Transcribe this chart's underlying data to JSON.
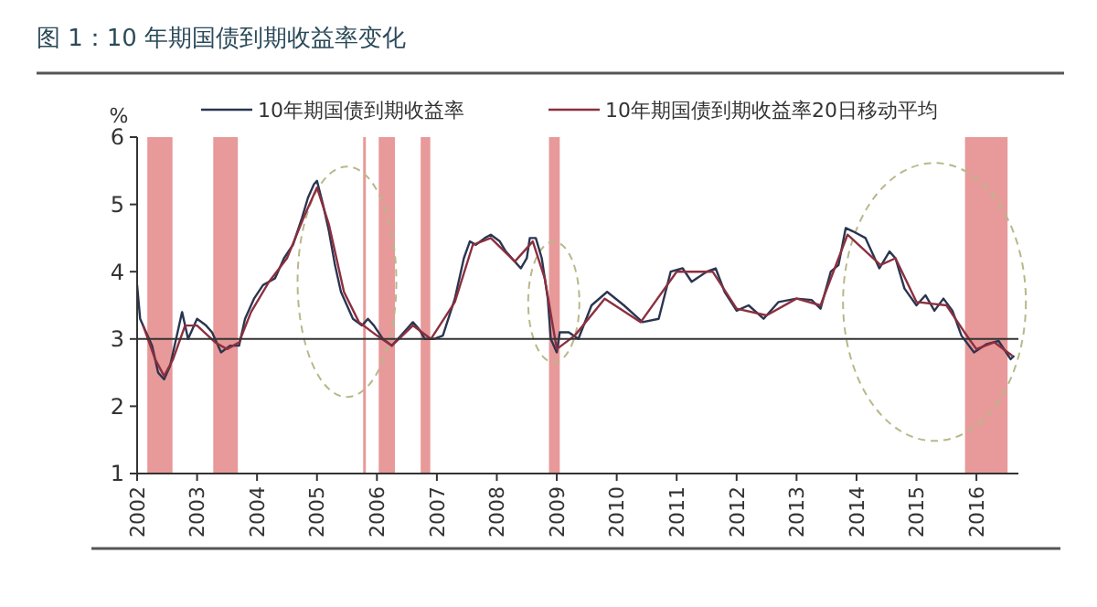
{
  "chart_data": {
    "type": "line",
    "title": "图 1：10 年期国债到期收益率变化",
    "ylabel": "%",
    "legend": "top",
    "grid": false,
    "line_style": "solid",
    "marker": "none",
    "xlim": [
      2002,
      2016.7
    ],
    "xticks": [
      2002,
      2003,
      2004,
      2005,
      2006,
      2007,
      2008,
      2009,
      2010,
      2011,
      2012,
      2013,
      2014,
      2015,
      2016
    ],
    "ylim": [
      1,
      6
    ],
    "yticks": [
      1,
      2,
      3,
      4,
      5,
      6
    ],
    "ref_lines": [
      {
        "axis": "y",
        "value": 3,
        "color": "#333333"
      }
    ],
    "bands": [
      {
        "axis": "x",
        "from": 2002.17,
        "to": 2002.59,
        "color": "#e58e8e"
      },
      {
        "axis": "x",
        "from": 2003.27,
        "to": 2003.68,
        "color": "#e58e8e"
      },
      {
        "axis": "x",
        "from": 2005.77,
        "to": 2005.81,
        "color": "#e58e8e"
      },
      {
        "axis": "x",
        "from": 2006.03,
        "to": 2006.3,
        "color": "#e58e8e"
      },
      {
        "axis": "x",
        "from": 2006.73,
        "to": 2006.89,
        "color": "#e58e8e"
      },
      {
        "axis": "x",
        "from": 2008.87,
        "to": 2009.05,
        "color": "#e58e8e"
      },
      {
        "axis": "x",
        "from": 2015.81,
        "to": 2016.52,
        "color": "#e58e8e"
      }
    ],
    "series": [
      {
        "name": "10年期国债到期收益率",
        "color": "#2a3550",
        "x": [
          2002,
          2002.05,
          2002.15,
          2002.25,
          2002.35,
          2002.45,
          2002.55,
          2002.65,
          2002.75,
          2002.85,
          2003,
          2003.15,
          2003.25,
          2003.4,
          2003.55,
          2003.7,
          2003.8,
          2003.95,
          2004.1,
          2004.3,
          2004.45,
          2004.6,
          2004.75,
          2004.85,
          2004.95,
          2005,
          2005.1,
          2005.2,
          2005.3,
          2005.4,
          2005.5,
          2005.6,
          2005.75,
          2005.85,
          2005.95,
          2006.1,
          2006.25,
          2006.35,
          2006.5,
          2006.6,
          2006.7,
          2006.8,
          2006.95,
          2007.1,
          2007.3,
          2007.45,
          2007.55,
          2007.65,
          2007.8,
          2007.9,
          2008.05,
          2008.15,
          2008.3,
          2008.4,
          2008.5,
          2008.55,
          2008.65,
          2008.75,
          2008.85,
          2008.9,
          2009,
          2009.05,
          2009.2,
          2009.36,
          2009.58,
          2009.84,
          2010.12,
          2010.43,
          2010.7,
          2010.9,
          2011.1,
          2011.25,
          2011.5,
          2011.65,
          2011.8,
          2012,
          2012.2,
          2012.45,
          2012.7,
          2013,
          2013.25,
          2013.4,
          2013.57,
          2013.7,
          2013.82,
          2013.94,
          2014.15,
          2014.38,
          2014.55,
          2014.65,
          2014.8,
          2015,
          2015.15,
          2015.3,
          2015.45,
          2015.6,
          2015.75,
          2015.96,
          2016.16,
          2016.37,
          2016.57,
          2016.63
        ],
        "values": [
          3.8,
          3.3,
          3.1,
          2.9,
          2.5,
          2.4,
          2.6,
          3.0,
          3.4,
          3.0,
          3.3,
          3.2,
          3.1,
          2.8,
          2.9,
          2.9,
          3.3,
          3.6,
          3.8,
          3.9,
          4.2,
          4.4,
          4.8,
          5.1,
          5.3,
          5.35,
          5.0,
          4.6,
          4.1,
          3.7,
          3.5,
          3.3,
          3.2,
          3.3,
          3.2,
          3.0,
          2.9,
          3.0,
          3.15,
          3.25,
          3.15,
          3.0,
          3.0,
          3.05,
          3.6,
          4.2,
          4.45,
          4.4,
          4.5,
          4.55,
          4.45,
          4.3,
          4.15,
          4.05,
          4.2,
          4.5,
          4.5,
          4.2,
          3.6,
          3.0,
          2.8,
          3.1,
          3.1,
          3.0,
          3.5,
          3.7,
          3.5,
          3.25,
          3.3,
          4.0,
          4.05,
          3.85,
          4.0,
          4.05,
          3.7,
          3.42,
          3.5,
          3.3,
          3.55,
          3.6,
          3.58,
          3.45,
          4.0,
          4.1,
          4.65,
          4.6,
          4.5,
          4.05,
          4.3,
          4.2,
          3.75,
          3.5,
          3.65,
          3.42,
          3.6,
          3.42,
          3.05,
          2.8,
          2.92,
          2.97,
          2.7,
          2.75
        ]
      },
      {
        "name": "10年期国债到期收益率20日移动平均",
        "color": "#8c2f3f",
        "x": [
          2002.1,
          2002.3,
          2002.45,
          2002.6,
          2002.8,
          2003,
          2003.3,
          2003.5,
          2003.7,
          2003.9,
          2004.2,
          2004.5,
          2004.8,
          2005,
          2005.2,
          2005.45,
          2005.7,
          2006,
          2006.25,
          2006.6,
          2006.9,
          2007.3,
          2007.6,
          2007.9,
          2008.3,
          2008.6,
          2008.8,
          2009,
          2009.3,
          2009.8,
          2010.4,
          2011,
          2011.6,
          2012,
          2012.5,
          2013,
          2013.4,
          2013.85,
          2014.4,
          2014.65,
          2015,
          2015.5,
          2015.8,
          2016,
          2016.3,
          2016.6
        ],
        "values": [
          3.2,
          2.7,
          2.45,
          2.7,
          3.2,
          3.2,
          2.95,
          2.85,
          2.95,
          3.4,
          3.85,
          4.2,
          4.85,
          5.25,
          4.7,
          3.7,
          3.25,
          3.05,
          2.9,
          3.2,
          3.0,
          3.55,
          4.4,
          4.5,
          4.15,
          4.45,
          3.9,
          2.85,
          3.05,
          3.6,
          3.25,
          4.0,
          4.0,
          3.45,
          3.35,
          3.6,
          3.5,
          4.55,
          4.1,
          4.2,
          3.55,
          3.5,
          3.1,
          2.85,
          2.95,
          2.75
        ]
      }
    ]
  }
}
